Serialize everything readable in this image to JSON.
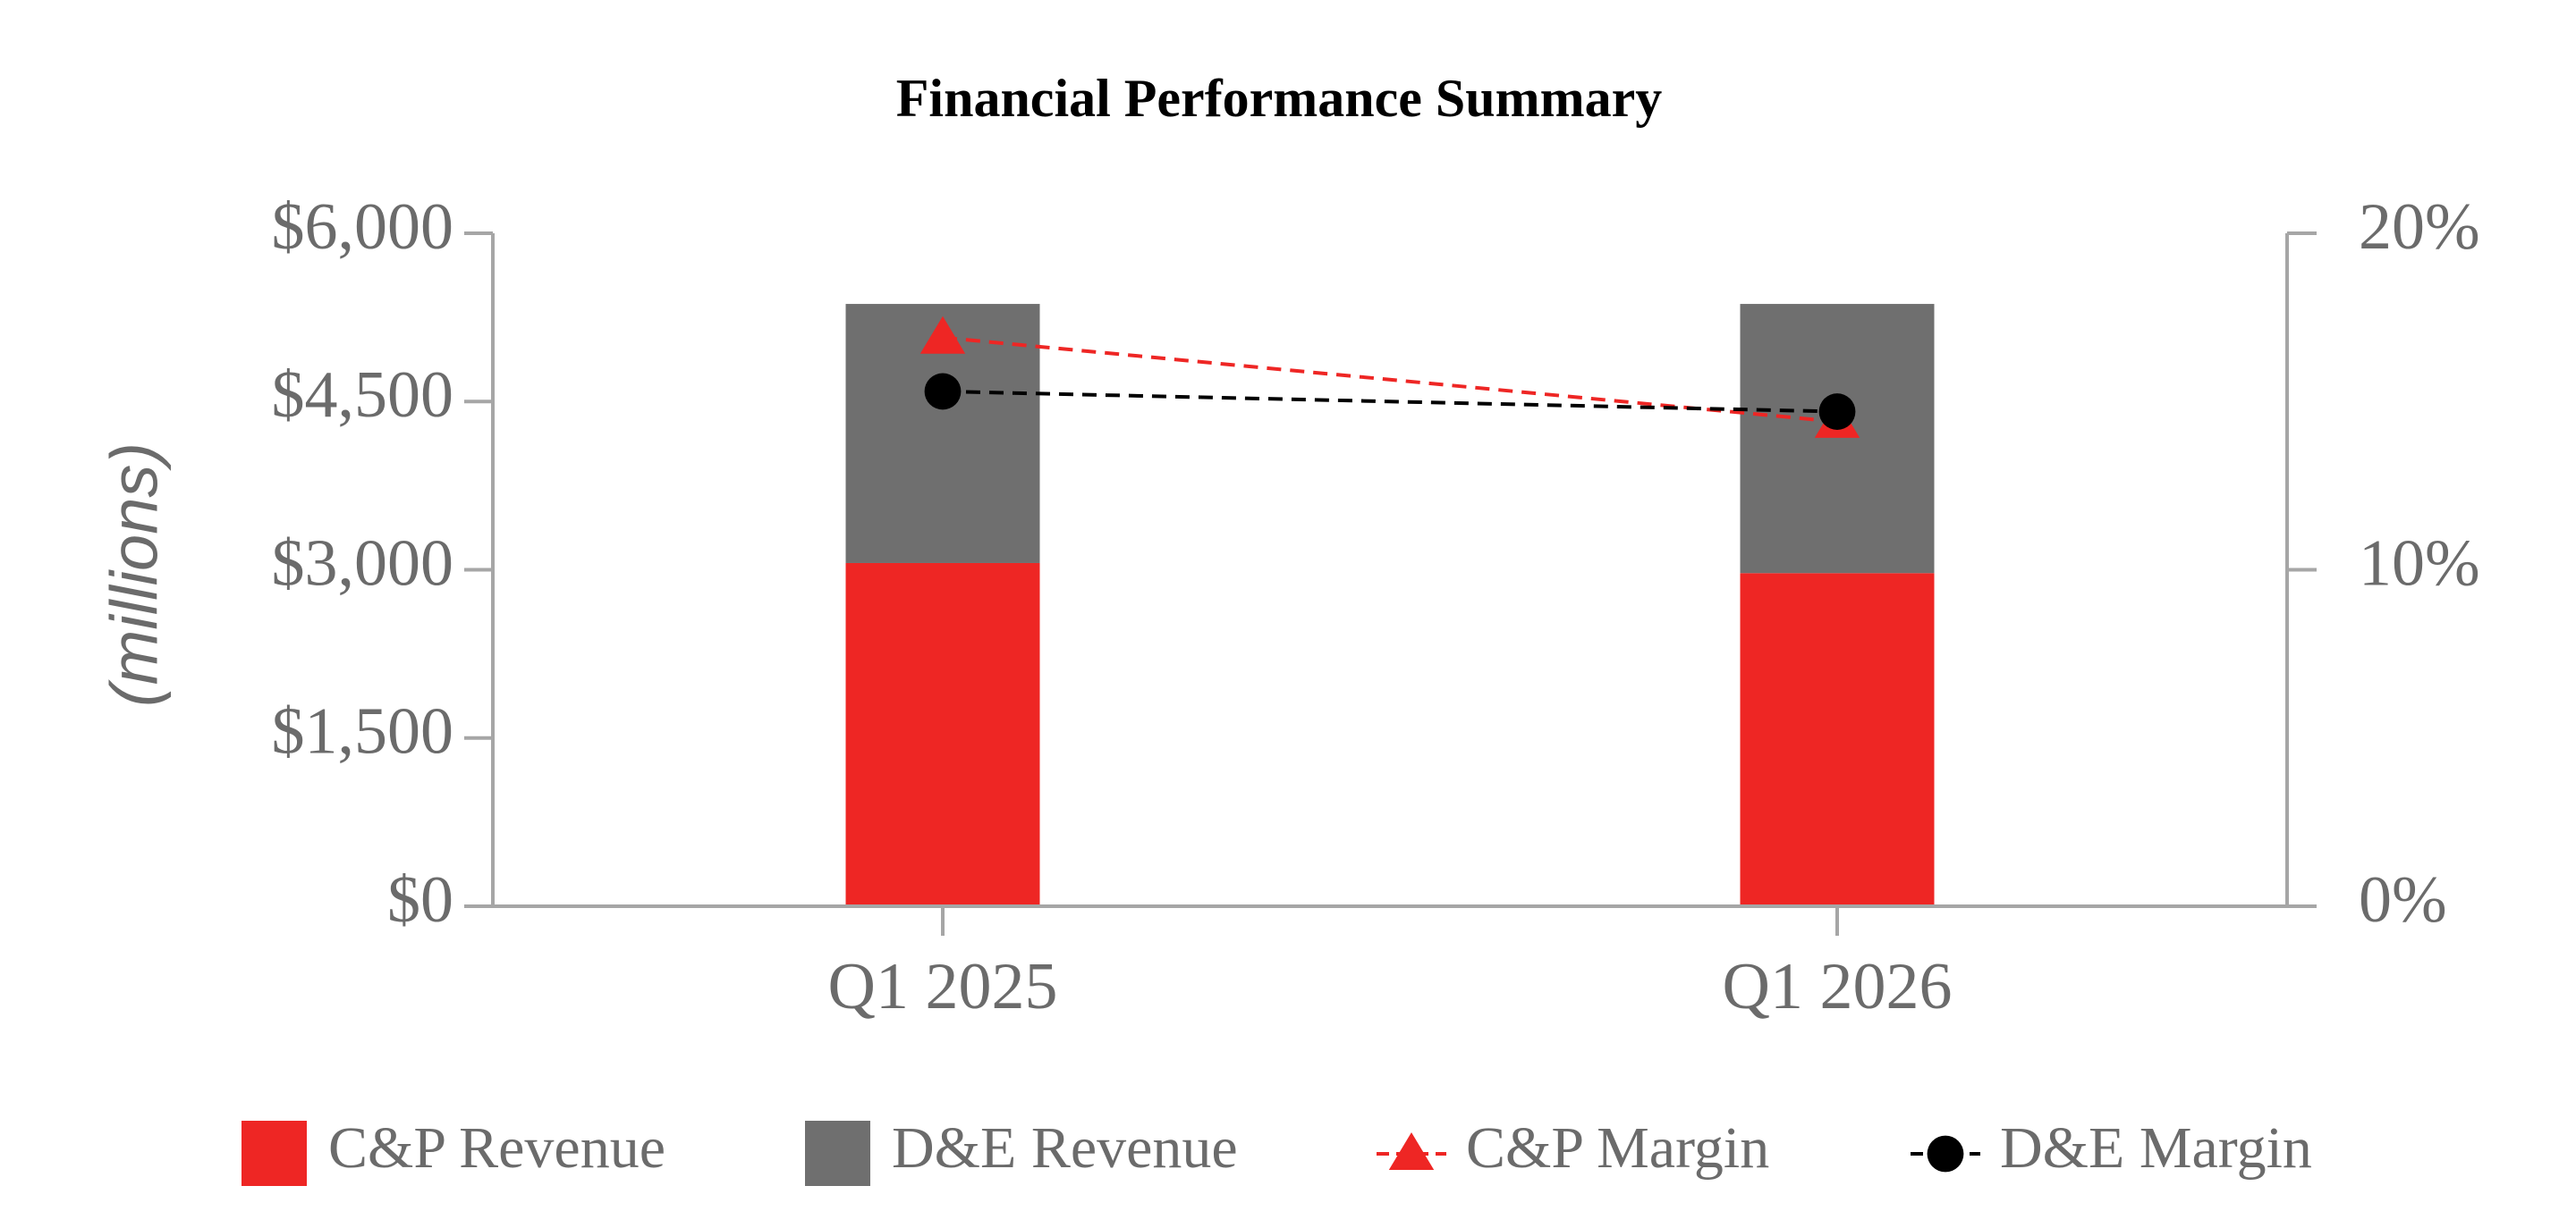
{
  "chart_data": {
    "type": "bar",
    "title": "Financial Performance Summary",
    "y_label": "(millions)",
    "categories": [
      "Q1 2025",
      "Q1 2026"
    ],
    "series": [
      {
        "name": "C&P Revenue",
        "type": "bar",
        "stacked": true,
        "color": "#ee2624",
        "values": [
          3060,
          2970
        ]
      },
      {
        "name": "D&E Revenue",
        "type": "bar",
        "stacked": true,
        "color": "#6f6f6f",
        "values": [
          2310,
          2400
        ]
      },
      {
        "name": "C&P Margin",
        "type": "line",
        "axis": "y2",
        "marker": "triangle",
        "dashed": true,
        "color": "#ee2624",
        "values": [
          16.9,
          14.4
        ]
      },
      {
        "name": "D&E Margin",
        "type": "line",
        "axis": "y2",
        "marker": "circle",
        "dashed": true,
        "color": "#000000",
        "values": [
          15.3,
          14.7
        ]
      }
    ],
    "ylim": [
      0,
      6000
    ],
    "yticks": [
      {
        "value": 0,
        "label": "$0"
      },
      {
        "value": 1500,
        "label": "$1,500"
      },
      {
        "value": 3000,
        "label": "$3,000"
      },
      {
        "value": 4500,
        "label": "$4,500"
      },
      {
        "value": 6000,
        "label": "$6,000"
      }
    ],
    "y2lim": [
      0,
      20
    ],
    "y2ticks": [
      {
        "value": 0,
        "label": "0%"
      },
      {
        "value": 10,
        "label": "10%"
      },
      {
        "value": 20,
        "label": "20%"
      }
    ],
    "grid": false,
    "legend": "bottom"
  }
}
